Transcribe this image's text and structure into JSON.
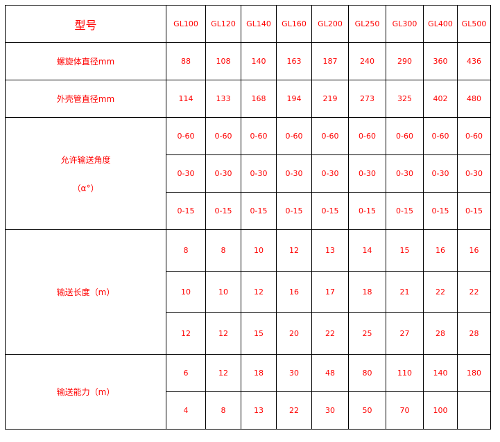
{
  "table": {
    "header_label": "型号",
    "models": [
      "GL100",
      "GL120",
      "GL140",
      "GL160",
      "GL200",
      "GL250",
      "GL300",
      "GL400",
      "GL500"
    ],
    "groups": [
      {
        "label": "螺旋体直径mm",
        "rows": [
          [
            "88",
            "108",
            "140",
            "163",
            "187",
            "240",
            "290",
            "360",
            "436"
          ]
        ]
      },
      {
        "label": "外壳管直径mm",
        "rows": [
          [
            "114",
            "133",
            "168",
            "194",
            "219",
            "273",
            "325",
            "402",
            "480"
          ]
        ]
      },
      {
        "label": "允许输送角度",
        "sublabel": "（α°）",
        "rows": [
          [
            "0-60",
            "0-60",
            "0-60",
            "0-60",
            "0-60",
            "0-60",
            "0-60",
            "0-60",
            "0-60"
          ],
          [
            "0-30",
            "0-30",
            "0-30",
            "0-30",
            "0-30",
            "0-30",
            "0-30",
            "0-30",
            "0-30"
          ],
          [
            "0-15",
            "0-15",
            "0-15",
            "0-15",
            "0-15",
            "0-15",
            "0-15",
            "0-15",
            "0-15"
          ]
        ]
      },
      {
        "label": "输送长度（m）",
        "tall": true,
        "rows": [
          [
            "8",
            "8",
            "10",
            "12",
            "13",
            "14",
            "15",
            "16",
            "16"
          ],
          [
            "10",
            "10",
            "12",
            "16",
            "17",
            "18",
            "21",
            "22",
            "22"
          ],
          [
            "12",
            "12",
            "15",
            "20",
            "22",
            "25",
            "27",
            "28",
            "28"
          ]
        ]
      },
      {
        "label": "输送能力（m）",
        "rows": [
          [
            "6",
            "12",
            "18",
            "30",
            "48",
            "80",
            "110",
            "140",
            "180"
          ],
          [
            "4",
            "8",
            "13",
            "22",
            "30",
            "50",
            "70",
            "100",
            ""
          ]
        ]
      }
    ]
  },
  "colors": {
    "text": "#ff0000",
    "border": "#000000"
  }
}
